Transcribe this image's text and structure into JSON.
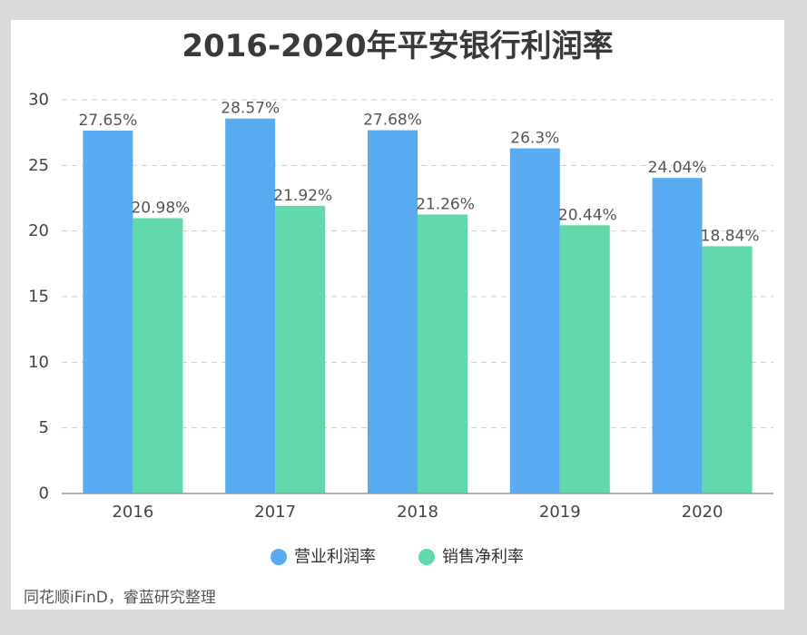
{
  "source_note": "同花顺iFinD，睿蓝研究整理",
  "colors": {
    "series_1": "#58ABF0",
    "series_2": "#61D9AA",
    "grid": "#cfcfcf",
    "axis": "#999999"
  },
  "chart_data": {
    "type": "bar",
    "title": "2016-2020年平安银行利润率",
    "categories": [
      "2016",
      "2017",
      "2018",
      "2019",
      "2020"
    ],
    "series": [
      {
        "name": "营业利润率",
        "values": [
          27.65,
          28.57,
          27.68,
          26.3,
          24.04
        ],
        "labels": [
          "27.65%",
          "28.57%",
          "27.68%",
          "26.3%",
          "24.04%"
        ]
      },
      {
        "name": "销售净利率",
        "values": [
          20.98,
          21.92,
          21.26,
          20.44,
          18.84
        ],
        "labels": [
          "20.98%",
          "21.92%",
          "21.26%",
          "20.44%",
          "18.84%"
        ]
      }
    ],
    "ylim": [
      0,
      30
    ],
    "yticks": [
      "0",
      "5",
      "10",
      "15",
      "20",
      "25",
      "30"
    ],
    "grid": true,
    "legend_position": "bottom"
  }
}
